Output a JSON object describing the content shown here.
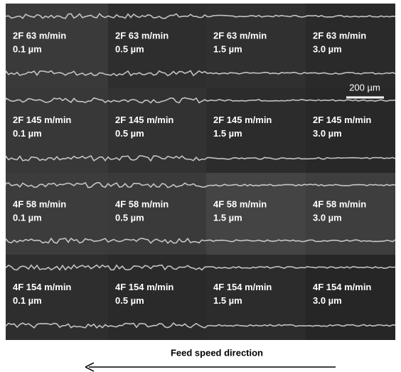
{
  "panels": {
    "rows": [
      [
        {
          "line1": "2F 63 m/min",
          "line2": "0.1 µm"
        },
        {
          "line1": "2F 63 m/min",
          "line2": "0.5 µm"
        },
        {
          "line1": "2F 63 m/min",
          "line2": "1.5 µm"
        },
        {
          "line1": "2F 63 m/min",
          "line2": "3.0 µm"
        }
      ],
      [
        {
          "line1": "2F 145 m/min",
          "line2": "0.1 µm"
        },
        {
          "line1": "2F 145 m/min",
          "line2": "0.5 µm"
        },
        {
          "line1": "2F 145 m/min",
          "line2": "1.5 µm"
        },
        {
          "line1": "2F 145 m/min",
          "line2": "3.0 µm"
        }
      ],
      [
        {
          "line1": "4F 58 m/min",
          "line2": "0.1 µm"
        },
        {
          "line1": "4F 58 m/min",
          "line2": "0.5 µm"
        },
        {
          "line1": "4F 58 m/min",
          "line2": "1.5 µm"
        },
        {
          "line1": "4F 58 m/min",
          "line2": "3.0 µm"
        }
      ],
      [
        {
          "line1": "4F 154 m/min",
          "line2": "0.1 µm"
        },
        {
          "line1": "4F 154 m/min",
          "line2": "0.5 µm"
        },
        {
          "line1": "4F 154 m/min",
          "line2": "1.5 µm"
        },
        {
          "line1": "4F 154 m/min",
          "line2": "3.0 µm"
        }
      ]
    ]
  },
  "scale_bar": "200 µm",
  "caption": "Feed speed direction"
}
